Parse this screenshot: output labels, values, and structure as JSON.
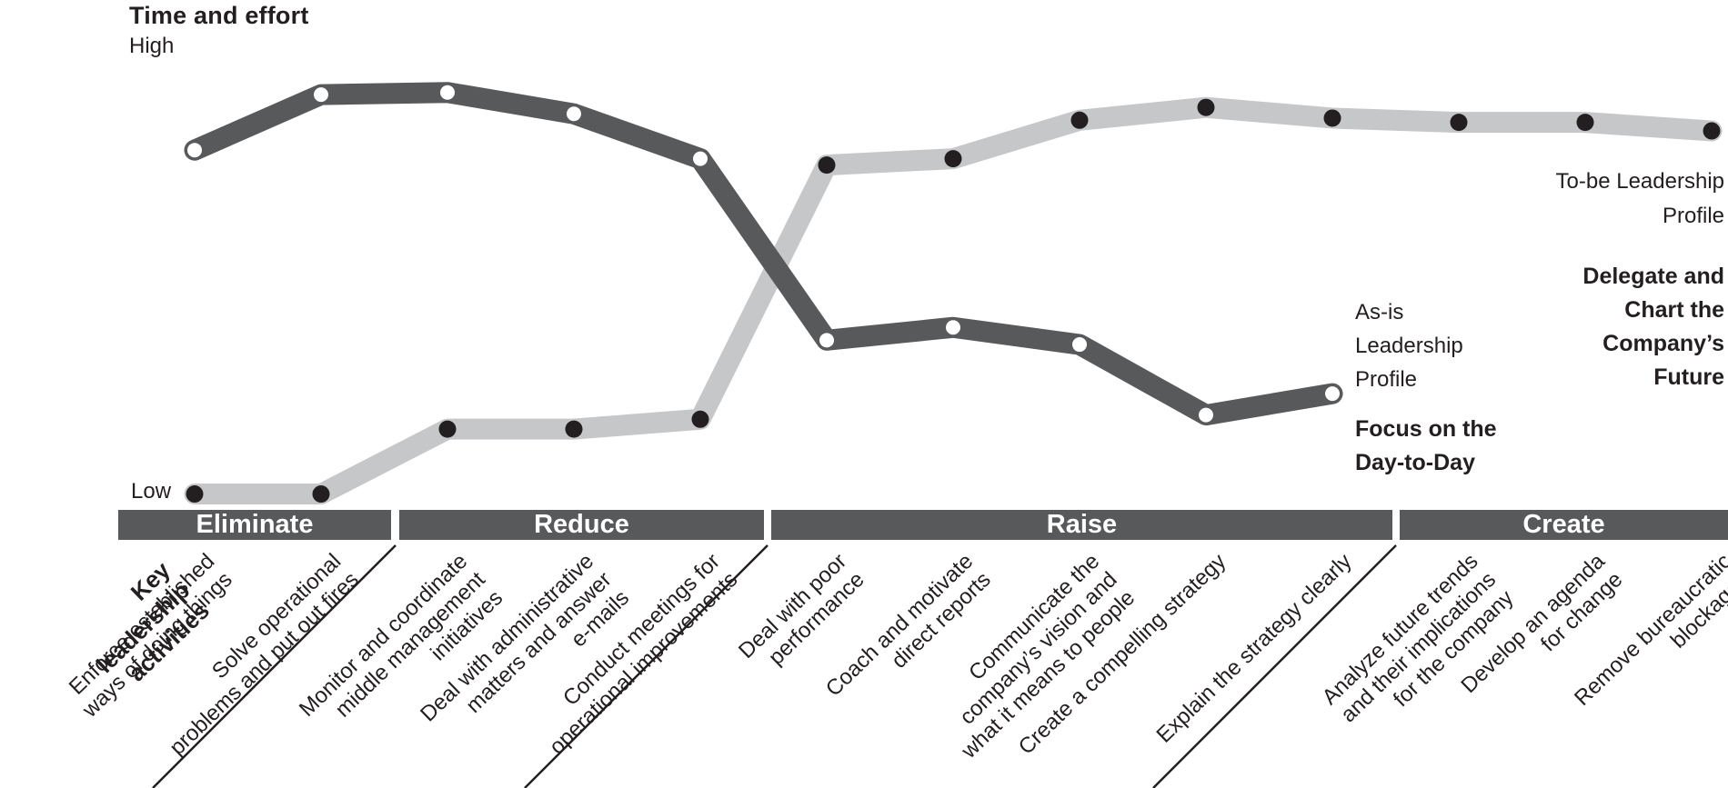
{
  "annotations": {
    "to_be": "To-be Leadership\nProfile",
    "delegate": "Delegate and\nChart the\nCompany’s\nFuture",
    "as_is": "As-is\nLeadership\nProfile",
    "focus": "Focus on the\nDay-to-Day"
  },
  "chart_data": {
    "type": "line",
    "title": "Time and effort",
    "y_axis": {
      "high": "High",
      "low": "Low"
    },
    "x_axis_title": "Key leadership activities",
    "x_axis_title_display": "Key leadership\nactivities",
    "ylim": [
      0,
      10
    ],
    "grid": false,
    "legend_position": "inline-right",
    "colors": {
      "as_is_line": "#58595b",
      "to_be_line": "#c6c7c9",
      "as_is_marker": "#ffffff",
      "to_be_marker": "#231f20",
      "band": "#58595b",
      "band_text": "#ffffff",
      "text": "#231f20"
    },
    "groups": [
      {
        "label": "Eliminate",
        "from": 0,
        "to": 1
      },
      {
        "label": "Reduce",
        "from": 2,
        "to": 4
      },
      {
        "label": "Raise",
        "from": 5,
        "to": 9
      },
      {
        "label": "Create",
        "from": 10,
        "to": 12
      }
    ],
    "categories": [
      [
        "Enforce established",
        "ways of doing things"
      ],
      [
        "Solve operational",
        "problems and put out fires"
      ],
      [
        "Monitor and coordinate",
        "middle management",
        "initiatives"
      ],
      [
        "Deal with administrative",
        "matters and answer",
        "e-mails"
      ],
      [
        "Conduct meetings for",
        "operational improvements"
      ],
      [
        "Deal with poor",
        "performance"
      ],
      [
        "Coach and motivate",
        "direct reports"
      ],
      [
        "Communicate the",
        "company’s vision and",
        "what it means to people"
      ],
      [
        "Create a compelling strategy"
      ],
      [
        "Explain the strategy clearly"
      ],
      [
        "Analyze future trends",
        "and their implications",
        "for the company"
      ],
      [
        "Develop an agenda",
        "for change"
      ],
      [
        "Remove bureaucratic",
        "blockages"
      ]
    ],
    "series": [
      {
        "name": "As-is Leadership Profile",
        "caption": "Focus on the Day-to-Day",
        "color": "#58595b",
        "marker_color": "#ffffff",
        "values": [
          8.4,
          9.7,
          9.75,
          9.25,
          8.2,
          3.95,
          4.25,
          3.85,
          2.2,
          2.7
        ]
      },
      {
        "name": "To-be Leadership Profile",
        "caption": "Delegate and Chart the Company’s Future",
        "color": "#c6c7c9",
        "marker_color": "#231f20",
        "values": [
          0.35,
          0.35,
          1.87,
          1.87,
          2.1,
          8.05,
          8.2,
          9.1,
          9.4,
          9.15,
          9.05,
          9.05,
          8.85
        ]
      }
    ]
  }
}
